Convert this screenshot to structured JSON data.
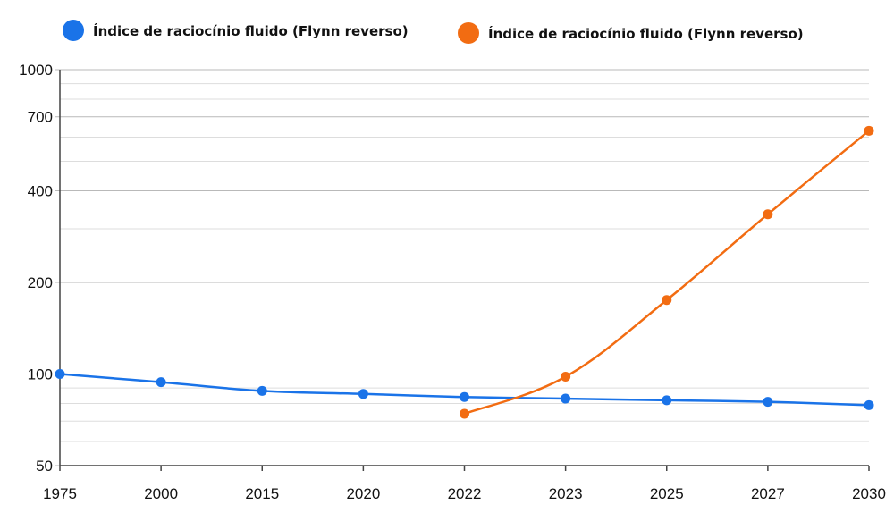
{
  "chart_data": {
    "type": "line",
    "title": "",
    "xlabel": "",
    "ylabel": "",
    "y_scale": "log",
    "ylim": [
      50,
      1000
    ],
    "y_ticks": [
      50,
      100,
      200,
      400,
      700,
      1000
    ],
    "y_minor_ticks": [
      60,
      70,
      80,
      90,
      300,
      500,
      600,
      800,
      900
    ],
    "grid": true,
    "legend_position": "top-left",
    "categories": [
      "1975",
      "2000",
      "2015",
      "2020",
      "2022",
      "2023",
      "2025",
      "2027",
      "2030"
    ],
    "series": [
      {
        "name": "Índice de raciocínio fluido (Flynn reverso)",
        "color": "#1a73e8",
        "values": [
          100,
          94,
          88,
          86,
          84,
          83,
          82,
          81,
          79
        ]
      },
      {
        "name": "Índice de raciocínio fluido (Flynn reverso)",
        "color": "#f26c12",
        "values": [
          null,
          null,
          null,
          null,
          74,
          98,
          175,
          335,
          630
        ]
      }
    ]
  }
}
